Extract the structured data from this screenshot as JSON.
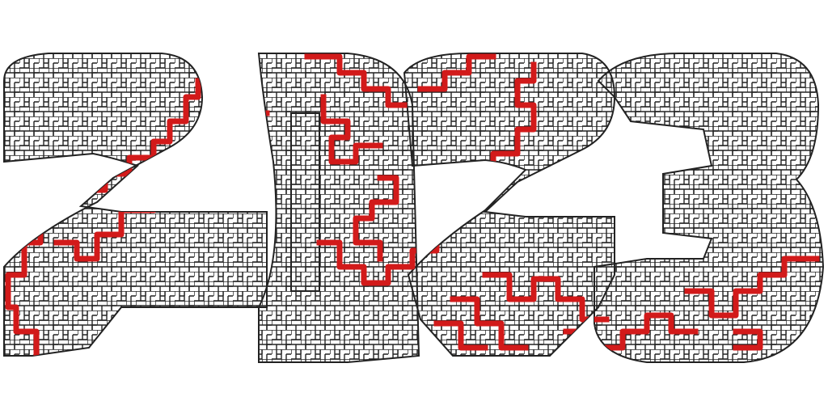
{
  "artwork": {
    "text": "2023",
    "style": "labyrinth maze shaped as numerals with solution path",
    "colors": {
      "background": "#ffffff",
      "maze_walls": "#222222",
      "solution_path": "#d21a1a"
    }
  }
}
